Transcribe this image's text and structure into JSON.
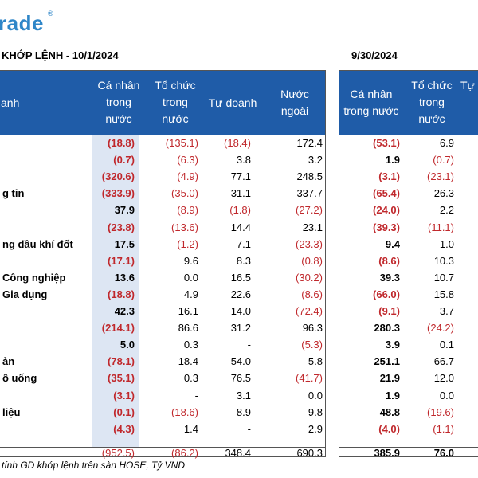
{
  "brand": {
    "logo_text": "rade",
    "reg_mark": "®",
    "color": "#2e86c8"
  },
  "titles": {
    "left": "KHỚP LỆNH - 10/1/2024",
    "right": "9/30/2024"
  },
  "left_table": {
    "headers": {
      "sector": "anh",
      "ca_nhan": "Cá nhân\ntrong\nnước",
      "to_chuc": "Tổ chức\ntrong\nnước",
      "tu_doanh": "Tự doanh",
      "nuoc_ngoai": "Nước\nngoài"
    },
    "rows": [
      {
        "sector": "",
        "ca_nhan": "(18.8)",
        "to_chuc": "(135.1)",
        "tu_doanh": "(18.4)",
        "nuoc_ngoai": "172.4"
      },
      {
        "sector": "",
        "ca_nhan": "(0.7)",
        "to_chuc": "(6.3)",
        "tu_doanh": "3.8",
        "nuoc_ngoai": "3.2"
      },
      {
        "sector": "",
        "ca_nhan": "(320.6)",
        "to_chuc": "(4.9)",
        "tu_doanh": "77.1",
        "nuoc_ngoai": "248.5"
      },
      {
        "sector": "g tin",
        "ca_nhan": "(333.9)",
        "to_chuc": "(35.0)",
        "tu_doanh": "31.1",
        "nuoc_ngoai": "337.7"
      },
      {
        "sector": "",
        "ca_nhan": "37.9",
        "to_chuc": "(8.9)",
        "tu_doanh": "(1.8)",
        "nuoc_ngoai": "(27.2)"
      },
      {
        "sector": "",
        "ca_nhan": "(23.8)",
        "to_chuc": "(13.6)",
        "tu_doanh": "14.4",
        "nuoc_ngoai": "23.1"
      },
      {
        "sector": "ng dầu khí đốt",
        "ca_nhan": "17.5",
        "to_chuc": "(1.2)",
        "tu_doanh": "7.1",
        "nuoc_ngoai": "(23.3)"
      },
      {
        "sector": "",
        "ca_nhan": "(17.1)",
        "to_chuc": "9.6",
        "tu_doanh": "8.3",
        "nuoc_ngoai": "(0.8)"
      },
      {
        "sector": "Công nghiệp",
        "ca_nhan": "13.6",
        "to_chuc": "0.0",
        "tu_doanh": "16.5",
        "nuoc_ngoai": "(30.2)"
      },
      {
        "sector": "Gia dụng",
        "ca_nhan": "(18.8)",
        "to_chuc": "4.9",
        "tu_doanh": "22.6",
        "nuoc_ngoai": "(8.6)"
      },
      {
        "sector": "",
        "ca_nhan": "42.3",
        "to_chuc": "16.1",
        "tu_doanh": "14.0",
        "nuoc_ngoai": "(72.4)"
      },
      {
        "sector": "",
        "ca_nhan": "(214.1)",
        "to_chuc": "86.6",
        "tu_doanh": "31.2",
        "nuoc_ngoai": "96.3"
      },
      {
        "sector": "",
        "ca_nhan": "5.0",
        "to_chuc": "0.3",
        "tu_doanh": "-",
        "nuoc_ngoai": "(5.3)"
      },
      {
        "sector": "ản",
        "ca_nhan": "(78.1)",
        "to_chuc": "18.4",
        "tu_doanh": "54.0",
        "nuoc_ngoai": "5.8"
      },
      {
        "sector": "ồ uống",
        "ca_nhan": "(35.1)",
        "to_chuc": "0.3",
        "tu_doanh": "76.5",
        "nuoc_ngoai": "(41.7)"
      },
      {
        "sector": "",
        "ca_nhan": "(3.1)",
        "to_chuc": "-",
        "tu_doanh": "3.1",
        "nuoc_ngoai": "0.0"
      },
      {
        "sector": "liệu",
        "ca_nhan": "(0.1)",
        "to_chuc": "(18.6)",
        "tu_doanh": "8.9",
        "nuoc_ngoai": "9.8"
      },
      {
        "sector": "",
        "ca_nhan": "(4.3)",
        "to_chuc": "1.4",
        "tu_doanh": "-",
        "nuoc_ngoai": "2.9"
      }
    ],
    "total": {
      "ca_nhan": "(952.5)",
      "to_chuc": "(86.2)",
      "tu_doanh": "348.4",
      "nuoc_ngoai": "690.3"
    }
  },
  "right_table": {
    "headers": {
      "ca_nhan": "Cá nhân\ntrong nước",
      "to_chuc": "Tổ chức\ntrong\nnước",
      "tu_doanh": "Tự"
    },
    "rows": [
      {
        "ca_nhan": "(53.1)",
        "to_chuc": "6.9"
      },
      {
        "ca_nhan": "1.9",
        "to_chuc": "(0.7)"
      },
      {
        "ca_nhan": "(3.1)",
        "to_chuc": "(23.1)"
      },
      {
        "ca_nhan": "(65.4)",
        "to_chuc": "26.3"
      },
      {
        "ca_nhan": "(24.0)",
        "to_chuc": "2.2"
      },
      {
        "ca_nhan": "(39.3)",
        "to_chuc": "(11.1)"
      },
      {
        "ca_nhan": "9.4",
        "to_chuc": "1.0"
      },
      {
        "ca_nhan": "(8.6)",
        "to_chuc": "10.3"
      },
      {
        "ca_nhan": "39.3",
        "to_chuc": "10.7"
      },
      {
        "ca_nhan": "(66.0)",
        "to_chuc": "15.8"
      },
      {
        "ca_nhan": "(9.1)",
        "to_chuc": "3.7"
      },
      {
        "ca_nhan": "280.3",
        "to_chuc": "(24.2)"
      },
      {
        "ca_nhan": "3.9",
        "to_chuc": "0.1"
      },
      {
        "ca_nhan": "251.1",
        "to_chuc": "66.7"
      },
      {
        "ca_nhan": "21.9",
        "to_chuc": "12.0"
      },
      {
        "ca_nhan": "1.9",
        "to_chuc": "0.0"
      },
      {
        "ca_nhan": "48.8",
        "to_chuc": "(19.6)"
      },
      {
        "ca_nhan": "(4.0)",
        "to_chuc": "(1.1)"
      }
    ],
    "total": {
      "ca_nhan": "385.9",
      "to_chuc": "76.0"
    }
  },
  "note": "tính GD khớp lệnh trên sàn HOSE, Tỷ VND",
  "colors": {
    "header_bg": "#1f5ca8",
    "highlight": "#dde6f3",
    "negative": "#c0282c"
  }
}
